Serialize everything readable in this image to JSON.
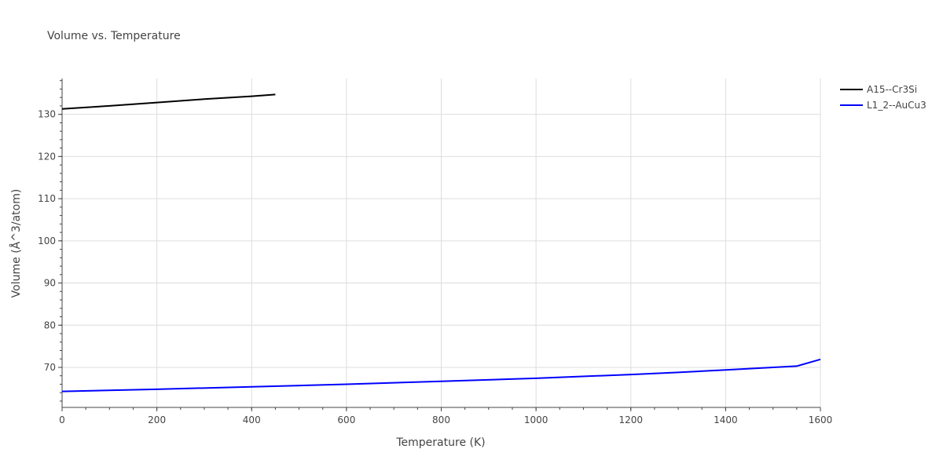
{
  "chart_data": {
    "type": "line",
    "title": "Volume vs. Temperature",
    "xlabel": "Temperature (K)",
    "ylabel": "Volume (Å^3/atom)",
    "xlim": [
      0,
      1600
    ],
    "ylim": [
      60.5,
      138.5
    ],
    "x_ticks": [
      0,
      200,
      400,
      600,
      800,
      1000,
      1200,
      1400,
      1600
    ],
    "y_ticks": [
      70,
      80,
      90,
      100,
      110,
      120,
      130
    ],
    "grid": true,
    "legend_position": "top-right",
    "series": [
      {
        "name": "A15--Cr3Si",
        "color": "#000000",
        "x": [
          0,
          100,
          200,
          300,
          400,
          450
        ],
        "y": [
          131.3,
          132.0,
          132.8,
          133.6,
          134.3,
          134.7
        ]
      },
      {
        "name": "L1_2--AuCu3",
        "color": "#0000ff",
        "x": [
          0,
          200,
          400,
          600,
          800,
          1000,
          1200,
          1300,
          1400,
          1500,
          1550,
          1600
        ],
        "y": [
          64.3,
          64.8,
          65.4,
          66.0,
          66.7,
          67.4,
          68.3,
          68.8,
          69.4,
          70.0,
          70.3,
          71.9
        ]
      }
    ]
  }
}
